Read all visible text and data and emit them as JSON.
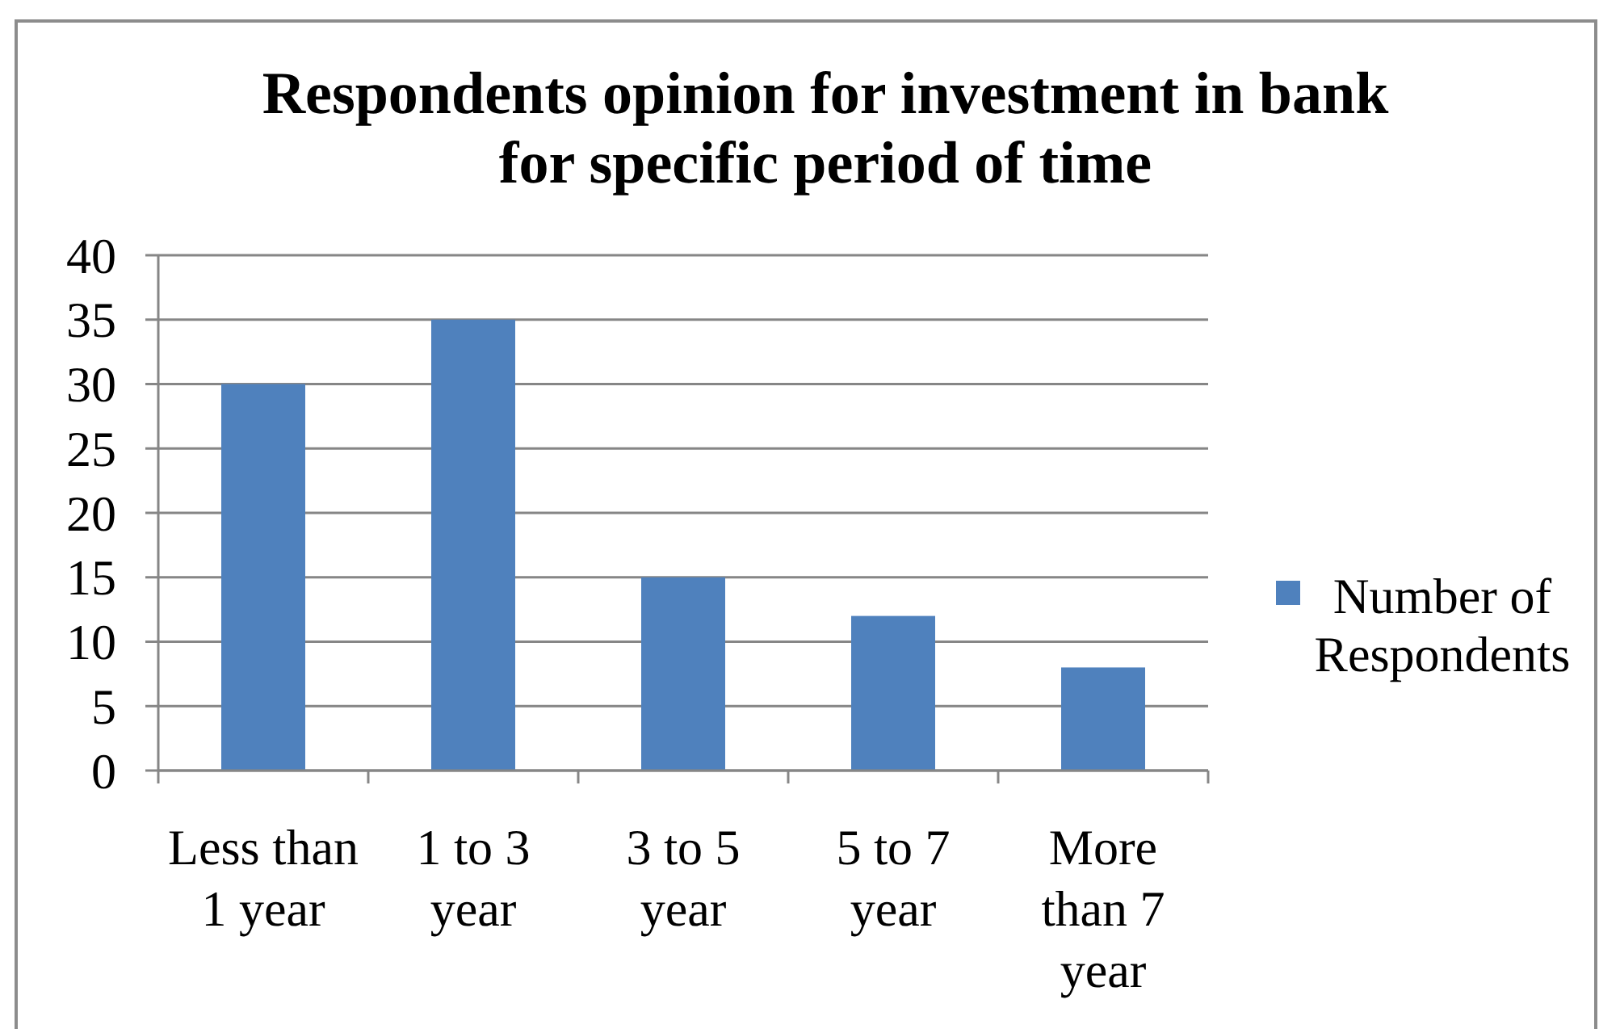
{
  "chart_data": {
    "type": "bar",
    "title": "Respondents opinion for investment in bank for specific period of time",
    "categories": [
      "Less than 1 year",
      "1 to 3 year",
      "3 to 5 year",
      "5 to 7 year",
      "More than 7 year"
    ],
    "series": [
      {
        "name": "Number of Respondents",
        "color": "#4f81bd",
        "values": [
          30,
          35,
          15,
          12,
          8
        ]
      }
    ],
    "ylim": [
      0,
      40
    ],
    "yticks": [
      0,
      5,
      10,
      15,
      20,
      25,
      30,
      35,
      40
    ],
    "grid": "y",
    "legend": "right"
  }
}
